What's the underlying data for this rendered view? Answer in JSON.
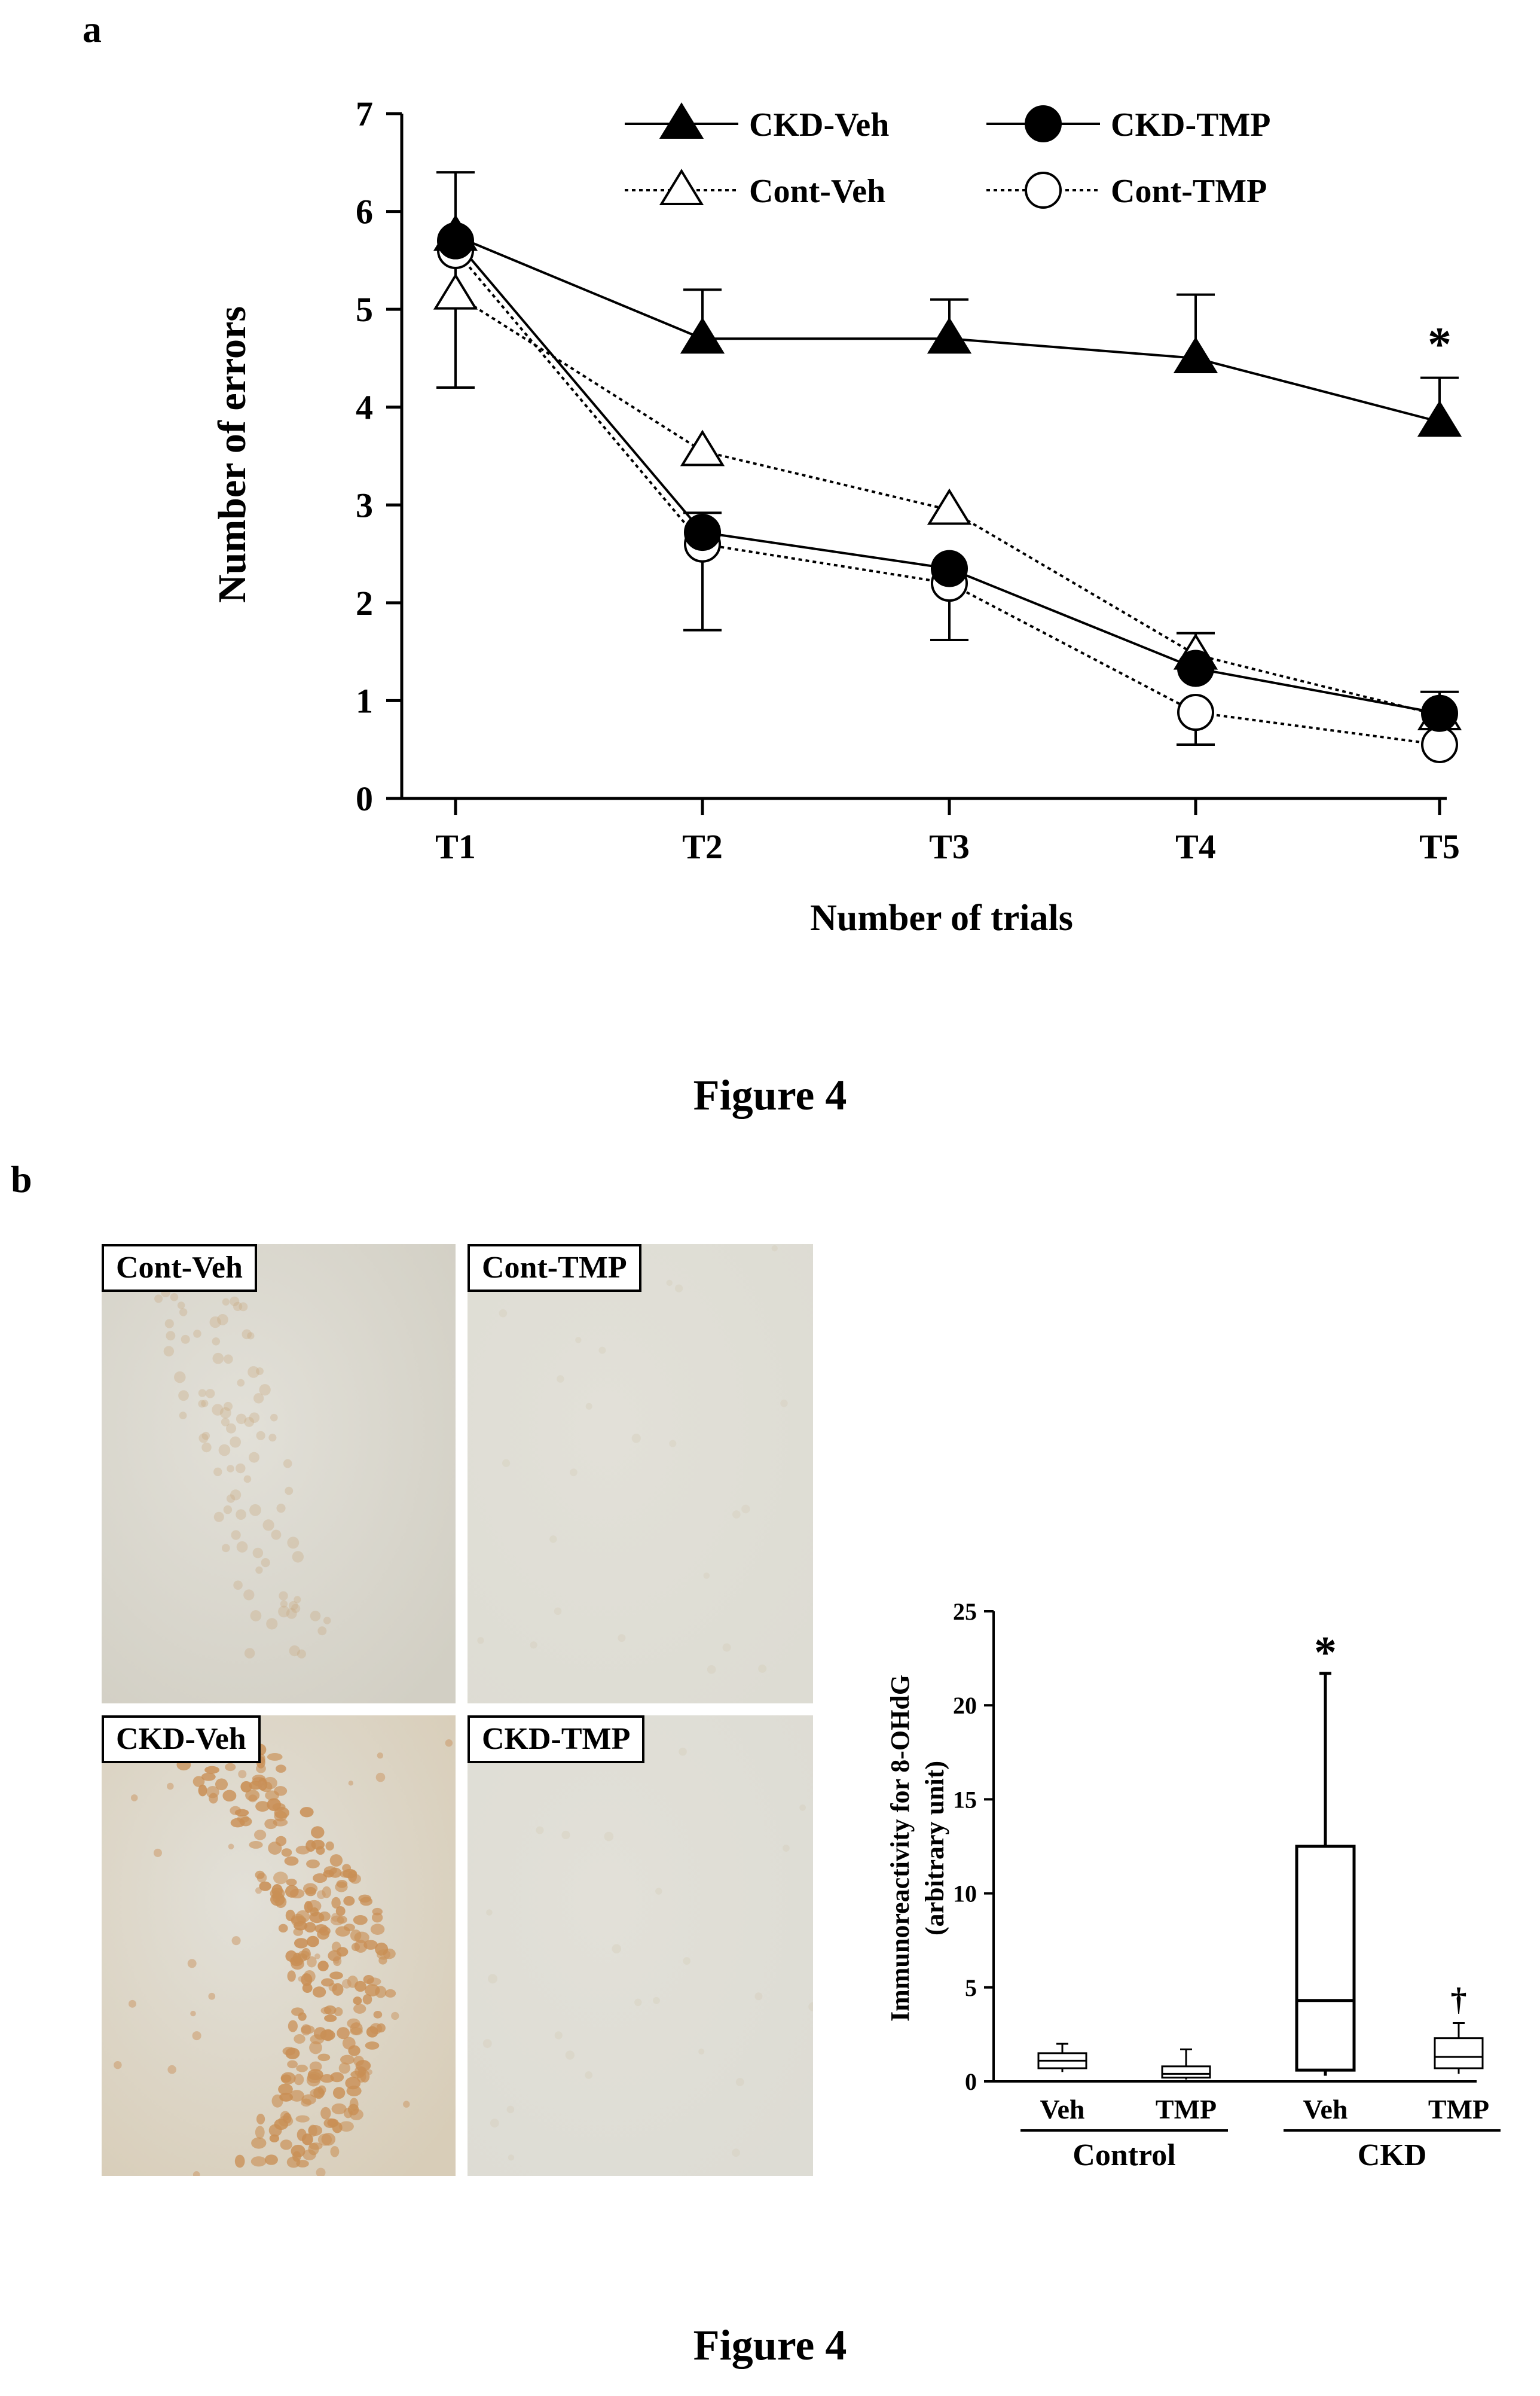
{
  "panel_a_label": "a",
  "panel_b_label": "b",
  "figure_captions": [
    "Figure 4",
    "Figure 4"
  ],
  "chart_data": [
    {
      "type": "line",
      "title": "",
      "xlabel": "Number of trials",
      "ylabel": "Number of errors",
      "categories": [
        "T1",
        "T2",
        "T3",
        "T4",
        "T5"
      ],
      "yticks": [
        "0",
        "1",
        "2",
        "3",
        "4",
        "5",
        "6",
        "7"
      ],
      "ylim": [
        0,
        7
      ],
      "legend_position": "top-center",
      "series": [
        {
          "name": "CKD-Veh",
          "marker": "filled-triangle",
          "line": "solid",
          "values": [
            5.75,
            4.7,
            4.7,
            4.5,
            3.85
          ],
          "error_up": [
            0.65,
            0.5,
            0.4,
            0.65,
            0.45
          ]
        },
        {
          "name": "CKD-TMP",
          "marker": "filled-circle",
          "line": "solid",
          "values": [
            5.7,
            2.72,
            2.35,
            1.33,
            0.87
          ],
          "error_up": [
            0.0,
            0.2,
            0.0,
            0.0,
            0.22
          ]
        },
        {
          "name": "Cont-Veh",
          "marker": "open-triangle",
          "line": "dotted",
          "values": [
            5.15,
            3.55,
            2.95,
            1.47,
            0.85
          ],
          "error_up": [
            0.0,
            0.0,
            0.0,
            0.22,
            0.0
          ]
        },
        {
          "name": "Cont-TMP",
          "marker": "open-circle",
          "line": "dotted",
          "values": [
            5.6,
            2.6,
            2.2,
            0.88,
            0.55
          ],
          "error_down": [
            1.4,
            0.88,
            0.58,
            0.33,
            0.0
          ]
        }
      ],
      "annotations": [
        {
          "text": "*",
          "category": "T5",
          "y": 4.65
        }
      ]
    },
    {
      "type": "box",
      "title": "",
      "ylabel": "Immunoreactivity for 8-OHdG (arbitrary unit)",
      "ylabel_lines": [
        "Immunoreactivity for 8-OHdG",
        "(arbitrary unit)"
      ],
      "categories": [
        "Veh",
        "TMP",
        "Veh",
        "TMP"
      ],
      "groups": [
        {
          "label": "Control",
          "categories": [
            0,
            1
          ]
        },
        {
          "label": "CKD",
          "categories": [
            2,
            3
          ]
        }
      ],
      "yticks": [
        "0",
        "5",
        "10",
        "15",
        "20",
        "25"
      ],
      "ylim": [
        0,
        25
      ],
      "boxes": [
        {
          "category": "Veh",
          "group": "Control",
          "min": 0.5,
          "q1": 0.7,
          "median": 1.1,
          "q3": 1.5,
          "max": 2.0
        },
        {
          "category": "TMP",
          "group": "Control",
          "min": 0.1,
          "q1": 0.2,
          "median": 0.4,
          "q3": 0.8,
          "max": 1.7
        },
        {
          "category": "Veh",
          "group": "CKD",
          "min": 0.3,
          "q1": 0.6,
          "median": 4.3,
          "q3": 12.5,
          "max": 21.7,
          "annotation": "*"
        },
        {
          "category": "TMP",
          "group": "CKD",
          "min": 0.4,
          "q1": 0.7,
          "median": 1.3,
          "q3": 2.3,
          "max": 3.1,
          "annotation": "†"
        }
      ]
    }
  ],
  "micrographs": [
    {
      "label": "Cont-Veh",
      "tint": "#d2cfc4"
    },
    {
      "label": "Cont-TMP",
      "tint": "#dddcd3"
    },
    {
      "label": "CKD-Veh",
      "tint": "#d8cdb8"
    },
    {
      "label": "CKD-TMP",
      "tint": "#dddcd4"
    }
  ]
}
